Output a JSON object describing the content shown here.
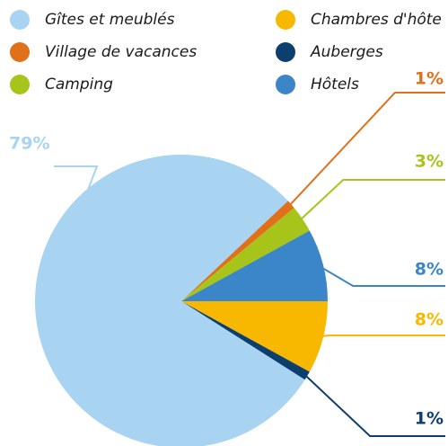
{
  "chart_data": {
    "type": "pie",
    "series": [
      {
        "name": "Gîtes et meublés",
        "color": "#a8d4f2",
        "values": [
          79
        ],
        "value_labels": [
          "79%"
        ]
      },
      {
        "name": "Village de vacances",
        "color": "#e0701a",
        "values": [
          1
        ],
        "value_labels": [
          "1%"
        ]
      },
      {
        "name": "Camping",
        "color": "#a6c41a",
        "values": [
          3
        ],
        "value_labels": [
          "3%"
        ]
      },
      {
        "name": "Chambres d'hôte",
        "color": "#f9b800",
        "values": [
          8
        ],
        "value_labels": [
          "8%"
        ]
      },
      {
        "name": "Auberges",
        "color": "#0d3f6e",
        "values": [
          1
        ],
        "value_labels": [
          "1%"
        ]
      },
      {
        "name": "Hôtels",
        "color": "#3a86c8",
        "values": [
          8
        ],
        "value_labels": [
          "8%"
        ]
      }
    ]
  }
}
